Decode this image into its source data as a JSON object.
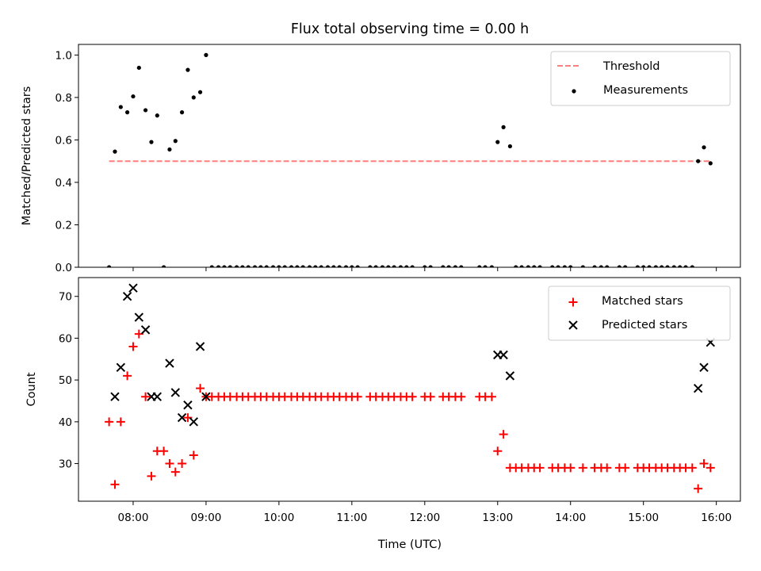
{
  "title": "Flux total observing time = 0.00 h",
  "xlabel": "Time (UTC)",
  "xticks": [
    {
      "t": 8,
      "label": "08:00"
    },
    {
      "t": 9,
      "label": "09:00"
    },
    {
      "t": 10,
      "label": "10:00"
    },
    {
      "t": 11,
      "label": "11:00"
    },
    {
      "t": 12,
      "label": "12:00"
    },
    {
      "t": 13,
      "label": "13:00"
    },
    {
      "t": 14,
      "label": "14:00"
    },
    {
      "t": 15,
      "label": "15:00"
    },
    {
      "t": 16,
      "label": "16:00"
    }
  ],
  "colors": {
    "threshold": "#ff7f7f",
    "measurements": "#000000",
    "matched": "#ff0000",
    "predicted": "#000000"
  },
  "chart_data": [
    {
      "type": "scatter",
      "ylabel": "Matched/Predicted stars",
      "xlim": [
        7.25,
        16.33
      ],
      "ylim": [
        0,
        1.05
      ],
      "yticks": [
        0.0,
        0.2,
        0.4,
        0.6,
        0.8,
        1.0
      ],
      "ytick_labels": [
        "0.0",
        "0.2",
        "0.4",
        "0.6",
        "0.8",
        "1.0"
      ],
      "legend": {
        "position": "top-right",
        "entries": [
          "Threshold",
          "Measurements"
        ]
      },
      "threshold": {
        "name": "Threshold",
        "value": 0.5,
        "x": [
          7.67,
          15.92
        ]
      },
      "series": [
        {
          "name": "Measurements",
          "x": [
            7.67,
            7.75,
            7.83,
            7.92,
            8.0,
            8.08,
            8.17,
            8.25,
            8.33,
            8.42,
            8.5,
            8.58,
            8.67,
            8.75,
            8.83,
            8.92,
            9.0,
            9.08,
            9.17,
            9.25,
            9.33,
            9.42,
            9.5,
            9.58,
            9.67,
            9.75,
            9.83,
            9.92,
            10.0,
            10.08,
            10.17,
            10.25,
            10.33,
            10.42,
            10.5,
            10.58,
            10.67,
            10.75,
            10.83,
            10.92,
            11.0,
            11.08,
            11.25,
            11.33,
            11.42,
            11.5,
            11.58,
            11.67,
            11.75,
            11.83,
            12.0,
            12.08,
            12.25,
            12.33,
            12.42,
            12.5,
            12.75,
            12.83,
            12.92,
            13.0,
            13.08,
            13.17,
            13.25,
            13.33,
            13.42,
            13.5,
            13.58,
            13.75,
            13.83,
            13.92,
            14.0,
            14.17,
            14.33,
            14.42,
            14.5,
            14.67,
            14.75,
            14.92,
            15.0,
            15.08,
            15.17,
            15.25,
            15.33,
            15.42,
            15.5,
            15.58,
            15.67,
            15.75,
            15.83,
            15.92
          ],
          "y": [
            0.0,
            0.545,
            0.755,
            0.73,
            0.805,
            0.94,
            0.74,
            0.59,
            0.715,
            0.0,
            0.555,
            0.595,
            0.73,
            0.93,
            0.8,
            0.825,
            1.0,
            0.0,
            0.0,
            0.0,
            0.0,
            0.0,
            0.0,
            0.0,
            0.0,
            0.0,
            0.0,
            0.0,
            0.0,
            0.0,
            0.0,
            0.0,
            0.0,
            0.0,
            0.0,
            0.0,
            0.0,
            0.0,
            0.0,
            0.0,
            0.0,
            0.0,
            0.0,
            0.0,
            0.0,
            0.0,
            0.0,
            0.0,
            0.0,
            0.0,
            0.0,
            0.0,
            0.0,
            0.0,
            0.0,
            0.0,
            0.0,
            0.0,
            0.0,
            0.59,
            0.66,
            0.57,
            0.0,
            0.0,
            0.0,
            0.0,
            0.0,
            0.0,
            0.0,
            0.0,
            0.0,
            0.0,
            0.0,
            0.0,
            0.0,
            0.0,
            0.0,
            0.0,
            0.0,
            0.0,
            0.0,
            0.0,
            0.0,
            0.0,
            0.0,
            0.0,
            0.0,
            0.5,
            0.565,
            0.49
          ]
        }
      ]
    },
    {
      "type": "scatter",
      "ylabel": "Count",
      "xlim": [
        7.25,
        16.33
      ],
      "ylim": [
        21,
        74.5
      ],
      "yticks": [
        30,
        40,
        50,
        60,
        70
      ],
      "ytick_labels": [
        "30",
        "40",
        "50",
        "60",
        "70"
      ],
      "legend": {
        "position": "top-right",
        "entries": [
          "Matched stars",
          "Predicted stars"
        ]
      },
      "series": [
        {
          "name": "Matched stars",
          "x": [
            7.67,
            7.75,
            7.83,
            7.92,
            8.0,
            8.08,
            8.17,
            8.25,
            8.33,
            8.42,
            8.5,
            8.58,
            8.67,
            8.75,
            8.83,
            8.92,
            9.0,
            9.08,
            9.17,
            9.25,
            9.33,
            9.42,
            9.5,
            9.58,
            9.67,
            9.75,
            9.83,
            9.92,
            10.0,
            10.08,
            10.17,
            10.25,
            10.33,
            10.42,
            10.5,
            10.58,
            10.67,
            10.75,
            10.83,
            10.92,
            11.0,
            11.08,
            11.25,
            11.33,
            11.42,
            11.5,
            11.58,
            11.67,
            11.75,
            11.83,
            12.0,
            12.08,
            12.25,
            12.33,
            12.42,
            12.5,
            12.75,
            12.83,
            12.92,
            13.0,
            13.08,
            13.17,
            13.25,
            13.33,
            13.42,
            13.5,
            13.58,
            13.75,
            13.83,
            13.92,
            14.0,
            14.17,
            14.33,
            14.42,
            14.5,
            14.67,
            14.75,
            14.92,
            15.0,
            15.08,
            15.17,
            15.25,
            15.33,
            15.42,
            15.5,
            15.58,
            15.67,
            15.75,
            15.83,
            15.92
          ],
          "y": [
            40,
            25,
            40,
            51,
            58,
            61,
            46,
            27,
            33,
            33,
            30,
            28,
            30,
            41,
            32,
            48,
            46,
            46,
            46,
            46,
            46,
            46,
            46,
            46,
            46,
            46,
            46,
            46,
            46,
            46,
            46,
            46,
            46,
            46,
            46,
            46,
            46,
            46,
            46,
            46,
            46,
            46,
            46,
            46,
            46,
            46,
            46,
            46,
            46,
            46,
            46,
            46,
            46,
            46,
            46,
            46,
            46,
            46,
            46,
            33,
            37,
            29,
            29,
            29,
            29,
            29,
            29,
            29,
            29,
            29,
            29,
            29,
            29,
            29,
            29,
            29,
            29,
            29,
            29,
            29,
            29,
            29,
            29,
            29,
            29,
            29,
            29,
            24,
            30,
            29
          ]
        },
        {
          "name": "Predicted stars",
          "x": [
            7.75,
            7.83,
            7.92,
            8.0,
            8.08,
            8.17,
            8.25,
            8.33,
            8.5,
            8.58,
            8.67,
            8.75,
            8.83,
            8.92,
            9.0,
            13.0,
            13.08,
            13.17,
            15.75,
            15.83,
            15.92
          ],
          "y": [
            46,
            53,
            70,
            72,
            65,
            62,
            46,
            46,
            54,
            47,
            41,
            44,
            40,
            58,
            46,
            56,
            56,
            51,
            48,
            53,
            59
          ]
        }
      ]
    }
  ]
}
